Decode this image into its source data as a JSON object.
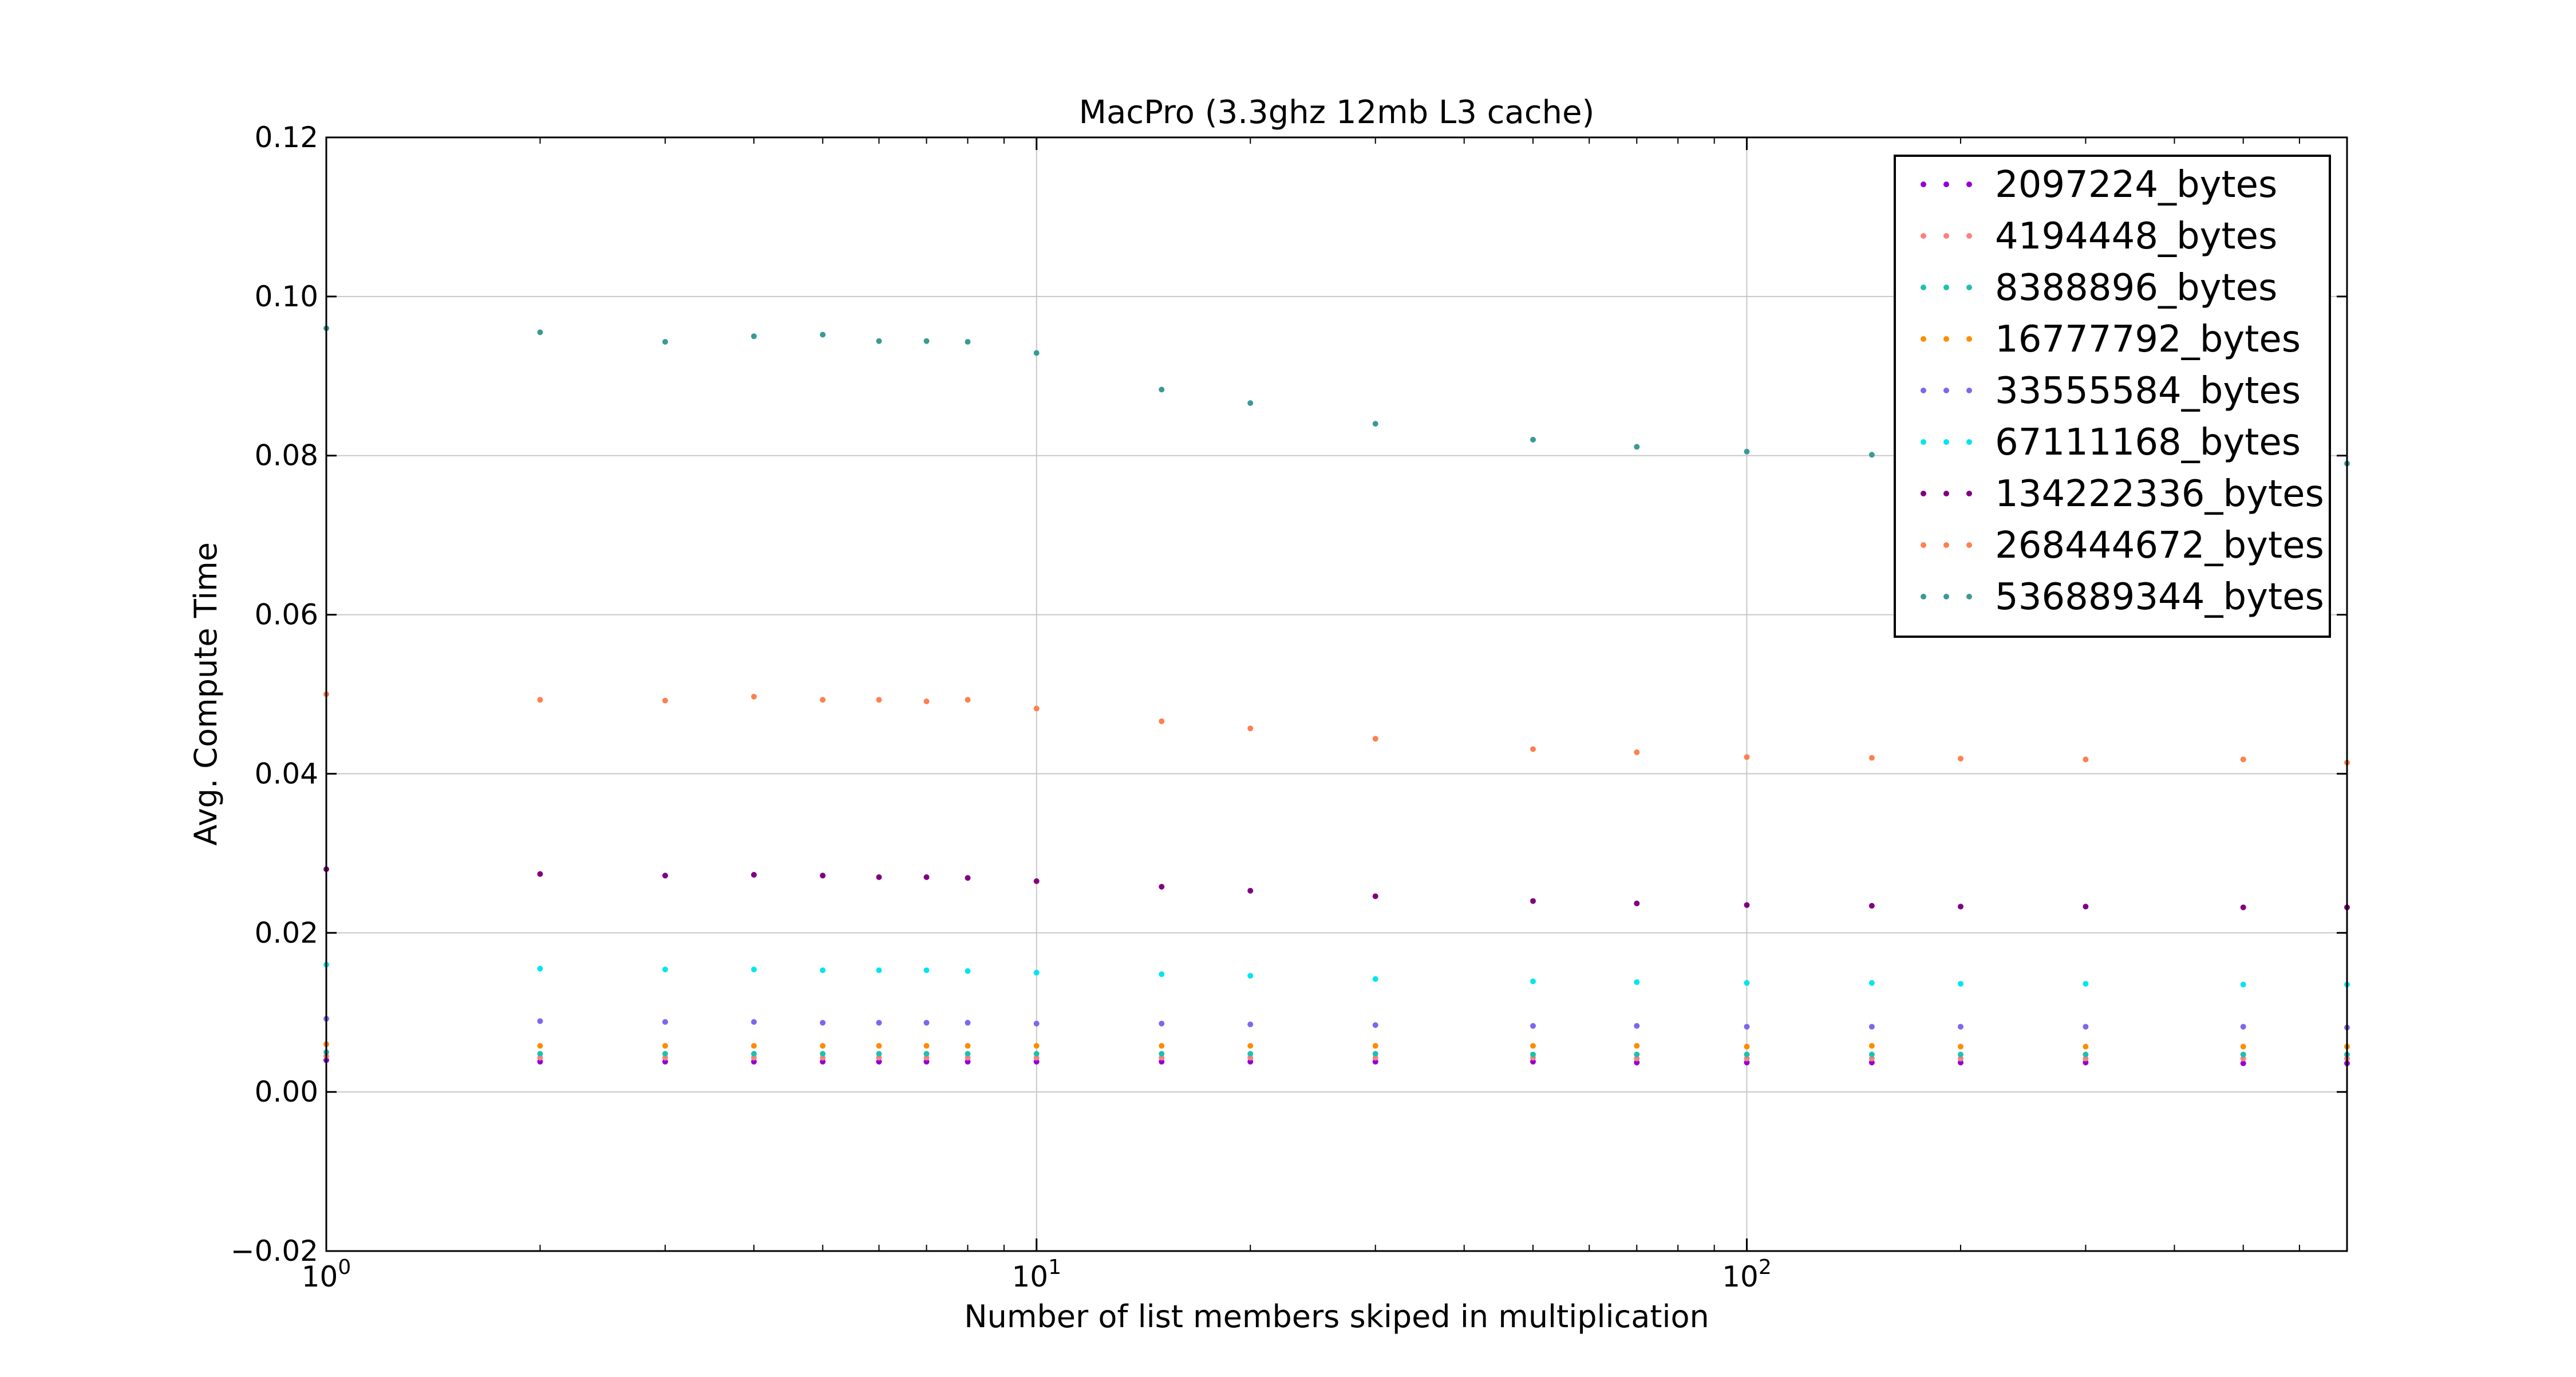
{
  "chart_data": {
    "type": "scatter",
    "title": "MacPro (3.3ghz 12mb L3 cache)",
    "xlabel": "Number of list members skiped in multiplication",
    "ylabel": "Avg. Compute Time",
    "xscale": "log",
    "xlim": [
      1,
      700
    ],
    "ylim": [
      -0.02,
      0.12
    ],
    "grid": true,
    "legend_position": "top-right",
    "x_ticks": [
      {
        "value": 1,
        "base": "10",
        "exp": "0"
      },
      {
        "value": 10,
        "base": "10",
        "exp": "1"
      },
      {
        "value": 100,
        "base": "10",
        "exp": "2"
      }
    ],
    "y_ticks": [
      {
        "value": -0.02,
        "label": "−0.02"
      },
      {
        "value": 0.0,
        "label": "0.00"
      },
      {
        "value": 0.02,
        "label": "0.02"
      },
      {
        "value": 0.04,
        "label": "0.04"
      },
      {
        "value": 0.06,
        "label": "0.06"
      },
      {
        "value": 0.08,
        "label": "0.08"
      },
      {
        "value": 0.1,
        "label": "0.10"
      },
      {
        "value": 0.12,
        "label": "0.12"
      }
    ],
    "x_sample_points": [
      1,
      2,
      3,
      4,
      5,
      6,
      7,
      8,
      10,
      15,
      20,
      30,
      50,
      70,
      100,
      150,
      200,
      300,
      500,
      700
    ],
    "series": [
      {
        "name": "2097224_bytes",
        "color": "#9400D3",
        "values": [
          0.004,
          0.0038,
          0.0038,
          0.0038,
          0.0038,
          0.0038,
          0.0038,
          0.0038,
          0.0038,
          0.0038,
          0.0038,
          0.0038,
          0.0038,
          0.0037,
          0.0037,
          0.0037,
          0.0037,
          0.0037,
          0.0036,
          0.0036
        ]
      },
      {
        "name": "4194448_bytes",
        "color": "#FF7F7F",
        "values": [
          0.0045,
          0.0043,
          0.0043,
          0.0043,
          0.0043,
          0.0043,
          0.0043,
          0.0043,
          0.0043,
          0.0043,
          0.0043,
          0.0043,
          0.0043,
          0.0042,
          0.0042,
          0.0042,
          0.0042,
          0.0042,
          0.0042,
          0.0042
        ]
      },
      {
        "name": "8388896_bytes",
        "color": "#20C0B0",
        "values": [
          0.005,
          0.0048,
          0.0048,
          0.0048,
          0.0048,
          0.0048,
          0.0048,
          0.0048,
          0.0048,
          0.0048,
          0.0048,
          0.0048,
          0.0047,
          0.0047,
          0.0047,
          0.0047,
          0.0047,
          0.0047,
          0.0047,
          0.0047
        ]
      },
      {
        "name": "16777792_bytes",
        "color": "#FF8C00",
        "values": [
          0.006,
          0.0058,
          0.0058,
          0.0058,
          0.0058,
          0.0058,
          0.0058,
          0.0058,
          0.0058,
          0.0058,
          0.0058,
          0.0058,
          0.0058,
          0.0058,
          0.0057,
          0.0058,
          0.0057,
          0.0057,
          0.0057,
          0.0057
        ]
      },
      {
        "name": "33555584_bytes",
        "color": "#7B68EE",
        "values": [
          0.0092,
          0.0089,
          0.0088,
          0.0088,
          0.0087,
          0.0087,
          0.0087,
          0.0087,
          0.0086,
          0.0086,
          0.0085,
          0.0084,
          0.0083,
          0.0083,
          0.0082,
          0.0082,
          0.0082,
          0.0082,
          0.0082,
          0.0081
        ]
      },
      {
        "name": "67111168_bytes",
        "color": "#00E5EE",
        "values": [
          0.016,
          0.0155,
          0.0154,
          0.0154,
          0.0153,
          0.0153,
          0.0153,
          0.0152,
          0.015,
          0.0148,
          0.0146,
          0.0142,
          0.0139,
          0.0138,
          0.0137,
          0.0137,
          0.0136,
          0.0136,
          0.0135,
          0.0135
        ]
      },
      {
        "name": "134222336_bytes",
        "color": "#800080",
        "values": [
          0.028,
          0.0274,
          0.0272,
          0.0273,
          0.0272,
          0.027,
          0.027,
          0.0269,
          0.0265,
          0.0258,
          0.0253,
          0.0246,
          0.024,
          0.0237,
          0.0235,
          0.0234,
          0.0233,
          0.0233,
          0.0232,
          0.0232
        ]
      },
      {
        "name": "268444672_bytes",
        "color": "#FF7F50",
        "values": [
          0.05,
          0.0493,
          0.0492,
          0.0497,
          0.0493,
          0.0493,
          0.0491,
          0.0493,
          0.0482,
          0.0466,
          0.0457,
          0.0444,
          0.0431,
          0.0427,
          0.0421,
          0.042,
          0.0419,
          0.0418,
          0.0418,
          0.0414
        ]
      },
      {
        "name": "536889344_bytes",
        "color": "#3A9A94",
        "values": [
          0.096,
          0.0955,
          0.0943,
          0.095,
          0.0952,
          0.0944,
          0.0944,
          0.0943,
          0.0929,
          0.0883,
          0.0866,
          0.084,
          0.082,
          0.0811,
          0.0805,
          0.0801,
          0.0799,
          0.0795,
          0.0793,
          0.079
        ]
      }
    ]
  }
}
